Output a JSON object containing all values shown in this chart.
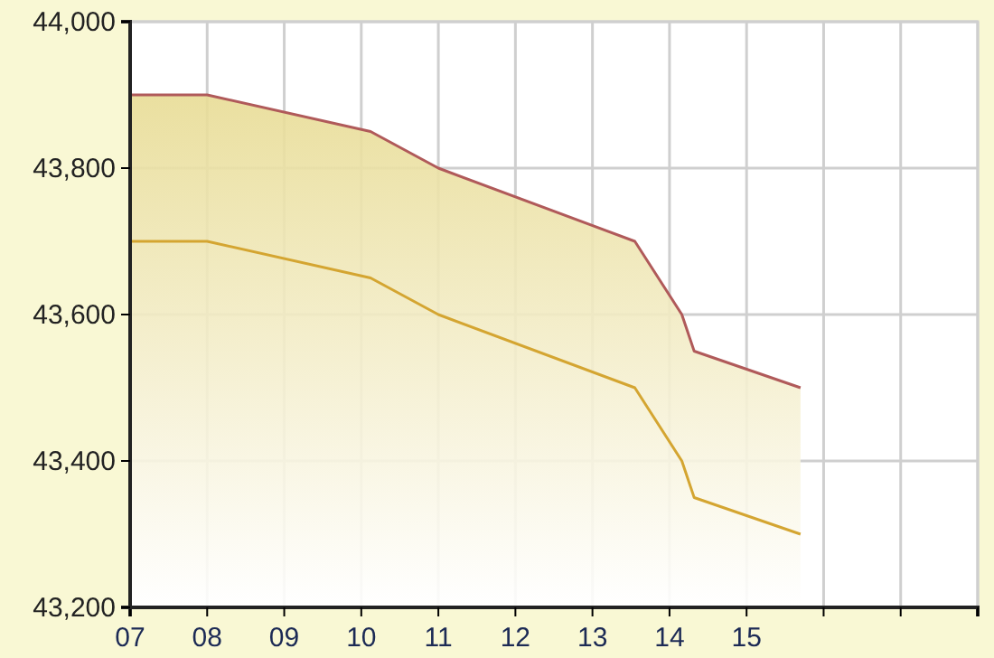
{
  "chart_data": {
    "type": "line",
    "x": [
      7,
      8,
      10.12,
      11,
      13.55,
      14.16,
      14.32,
      15.7
    ],
    "series": [
      {
        "type": "area",
        "color": "#b05a5a",
        "values": [
          43900,
          43900,
          43850,
          43800,
          43700,
          43600,
          43550,
          43500
        ]
      },
      {
        "color": "#d4a531",
        "values": [
          43700,
          43700,
          43650,
          43600,
          43500,
          43400,
          43350,
          43300
        ]
      }
    ],
    "xlim": [
      7,
      18
    ],
    "xticks": [
      {
        "value": 7,
        "label": "07"
      },
      {
        "value": 8,
        "label": "08"
      },
      {
        "value": 9,
        "label": "09"
      },
      {
        "value": 10,
        "label": "10"
      },
      {
        "value": 11,
        "label": "11"
      },
      {
        "value": 12,
        "label": "12"
      },
      {
        "value": 13,
        "label": "13"
      },
      {
        "value": 14,
        "label": "14"
      },
      {
        "value": 15,
        "label": "15"
      },
      {
        "value": 16,
        "label": null
      },
      {
        "value": 17,
        "label": null
      },
      {
        "value": 18,
        "label": null
      }
    ],
    "ylim": [
      43200,
      44000
    ],
    "yticks": [
      {
        "value": 43200,
        "label": "43,200"
      },
      {
        "value": 43400,
        "label": "43,400"
      },
      {
        "value": 43600,
        "label": "43,600"
      },
      {
        "value": 43800,
        "label": "43,800"
      },
      {
        "value": 44000,
        "label": "44,000"
      }
    ],
    "grid": true,
    "marker": "none",
    "line_style": "solid"
  }
}
